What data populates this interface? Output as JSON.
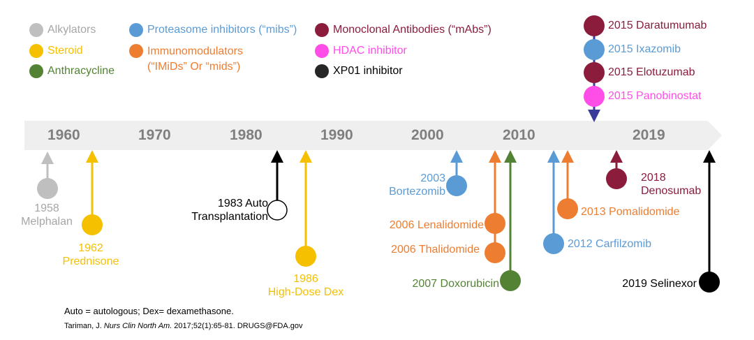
{
  "colors": {
    "alkylators": "#bfbfbf",
    "steroid": "#f5c000",
    "anthracycline": "#548235",
    "proteasome": "#5b9bd5",
    "immunomodulators": "#ed7d31",
    "mabs": "#8b1c3c",
    "hdac": "#ff4de8",
    "xpo1": "#000000",
    "axis_band": "#efefef",
    "year_text": "#7f7f7f",
    "stacked_arrow": "#3b3b9b"
  },
  "legend": [
    {
      "key": "alkylators",
      "label": "Alkylators",
      "color": "#bfbfbf",
      "text_color": "#a6a6a6"
    },
    {
      "key": "steroid",
      "label": "Steroid",
      "color": "#f5c000",
      "text_color": "#f5c000"
    },
    {
      "key": "anthracycline",
      "label": "Anthracycline",
      "color": "#548235",
      "text_color": "#548235"
    },
    {
      "key": "proteasome",
      "label": "Proteasome inhibitors (“mibs”)",
      "color": "#5b9bd5",
      "text_color": "#5b9bd5"
    },
    {
      "key": "immunomodulators",
      "label": "Immunomodulators",
      "label2": "(“IMiDs” Or “mids”)",
      "color": "#ed7d31",
      "text_color": "#ed7d31"
    },
    {
      "key": "mabs",
      "label": "Monoclonal Antibodies (“mAbs”)",
      "color": "#8b1c3c",
      "text_color": "#8b1c3c"
    },
    {
      "key": "hdac",
      "label": "HDAC inhibitor",
      "color": "#ff4de8",
      "text_color": "#ff4de8"
    },
    {
      "key": "xpo1",
      "label": "XP01 inhibitor",
      "color": "#262626",
      "text_color": "#000000"
    }
  ],
  "axis": {
    "years": [
      {
        "value": 1960,
        "label": "1960"
      },
      {
        "value": 1970,
        "label": "1970"
      },
      {
        "value": 1980,
        "label": "1980"
      },
      {
        "value": 1990,
        "label": "1990"
      },
      {
        "value": 2000,
        "label": "2000"
      },
      {
        "value": 2010,
        "label": "2010"
      },
      {
        "value": 2019,
        "label": "2019"
      }
    ]
  },
  "below_events": [
    {
      "year": 1958,
      "class": "alkylators",
      "line1": "1958",
      "line2": "Melphalan"
    },
    {
      "year": 1962,
      "class": "steroid",
      "line1": "1962",
      "line2": "Prednisone"
    },
    {
      "year": 1983,
      "class": "xpo1",
      "line1": "1983 Auto",
      "line2": "Transplantation",
      "hollow": true
    },
    {
      "year": 1986,
      "class": "steroid",
      "line1": "1986",
      "line2": "High-Dose Dex"
    },
    {
      "year": 2003,
      "class": "proteasome",
      "line1": "2003",
      "line2": "Bortezomib"
    },
    {
      "year": 2006,
      "class": "immunomodulators",
      "line1": "2006 Lenalidomide"
    },
    {
      "year": 2006,
      "class": "immunomodulators",
      "line1": "2006 Thalidomide"
    },
    {
      "year": 2007,
      "class": "anthracycline",
      "line1": "2007 Doxorubicin"
    },
    {
      "year": 2012,
      "class": "proteasome",
      "line1": "2012 Carfilzomib"
    },
    {
      "year": 2013,
      "class": "immunomodulators",
      "line1": "2013 Pomalidomide"
    },
    {
      "year": 2018,
      "class": "mabs",
      "line1": "2018",
      "line2": "Denosumab"
    },
    {
      "year": 2019,
      "class": "xpo1",
      "line1": "2019 Selinexor"
    }
  ],
  "above_events": [
    {
      "year": 2015,
      "class": "mabs",
      "label": "2015 Daratumumab"
    },
    {
      "year": 2015,
      "class": "proteasome",
      "label": "2015 Ixazomib"
    },
    {
      "year": 2015,
      "class": "mabs",
      "label": "2015 Elotuzumab"
    },
    {
      "year": 2015,
      "class": "hdac",
      "label": "2015 Panobinostat"
    }
  ],
  "footnote": "Auto = autologous; Dex= dexamethasone.",
  "citation": {
    "pre": "Tariman, J. ",
    "journal": "Nurs Clin North Am.",
    "post": " 2017;52(1):65-81. DRUGS@FDA.gov"
  }
}
